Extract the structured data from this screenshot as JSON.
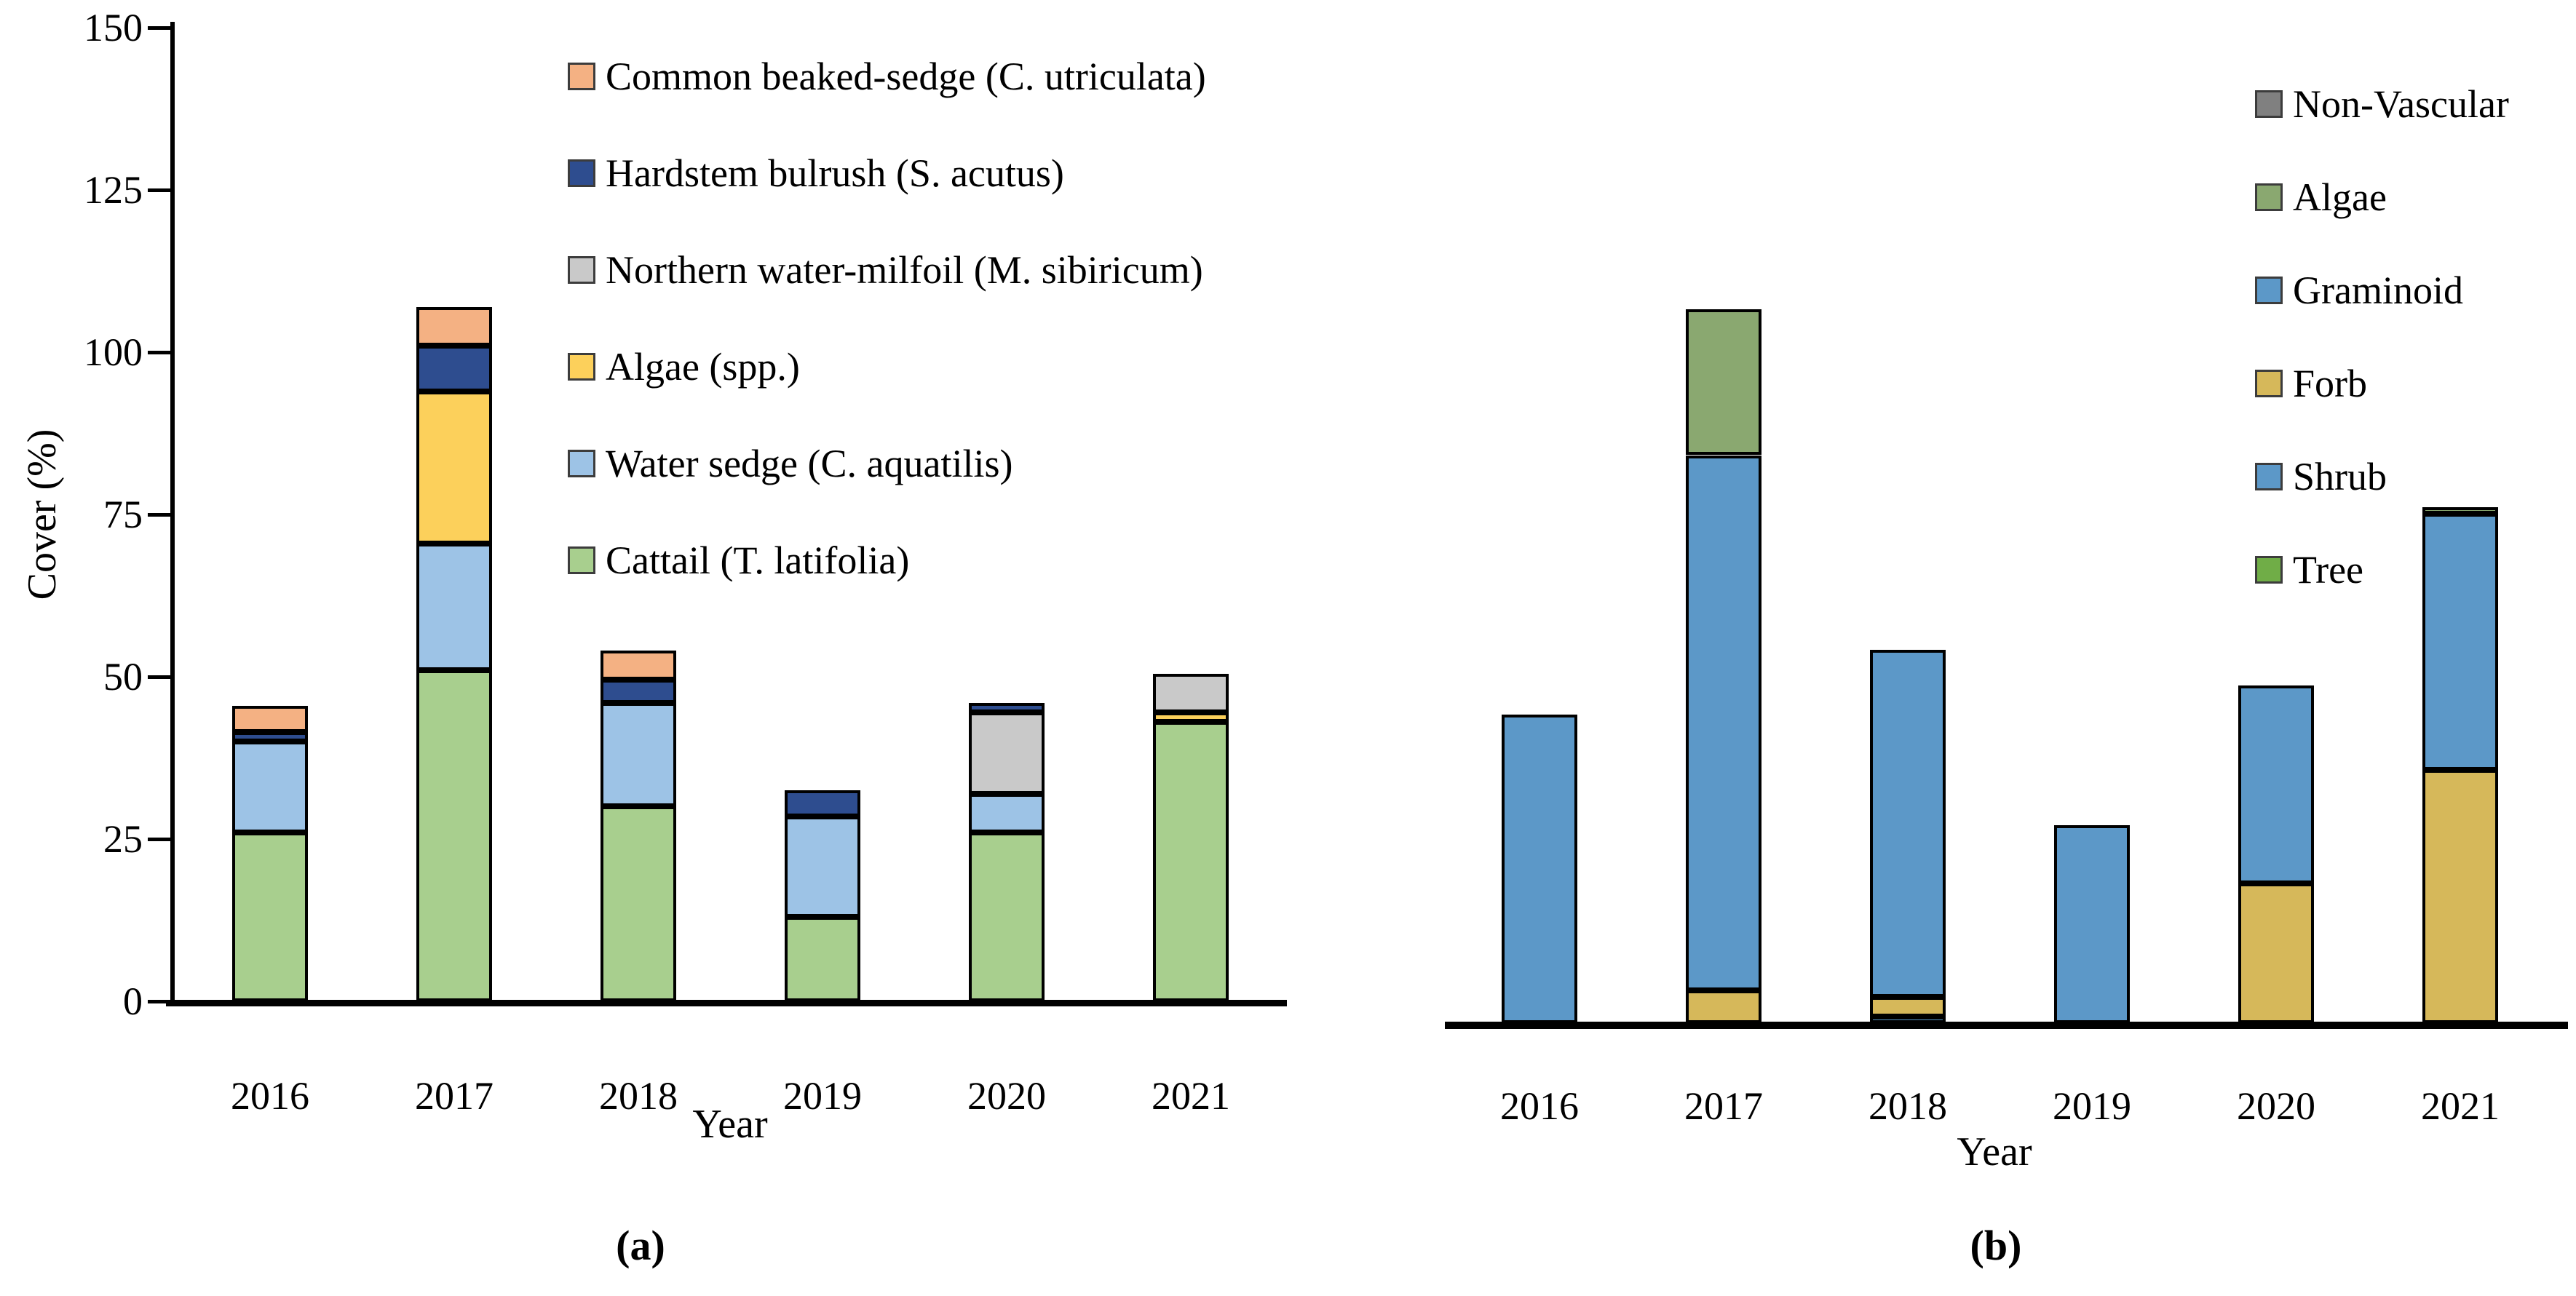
{
  "chart_data": [
    {
      "type": "bar",
      "subtype": "stacked-vertical",
      "panel_caption": "(a)",
      "title": "",
      "xlabel": "Year",
      "ylabel": "Cover (%)",
      "ylim": [
        0,
        150
      ],
      "y_ticks": [
        150,
        125,
        100,
        75,
        50,
        25,
        0
      ],
      "grid": "off",
      "legend_position": "upper-right-inside",
      "categories": [
        "2016",
        "2017",
        "2018",
        "2019",
        "2020",
        "2021"
      ],
      "series": [
        {
          "name": "Common beaked-sedge (C. utriculata)",
          "color": "#F4B183",
          "values": [
            4,
            6,
            4.5,
            0,
            0,
            0
          ]
        },
        {
          "name": "Hardstem bulrush (S. acutus)",
          "color": "#2E4D8F",
          "values": [
            1.5,
            7,
            3.5,
            4,
            1.5,
            0
          ]
        },
        {
          "name": "Northern water-milfoil (M. sibiricum)",
          "color": "#C9C9C9",
          "values": [
            0,
            0,
            0,
            0,
            12.5,
            6
          ]
        },
        {
          "name": "Algae (spp.)",
          "color": "#FCD05B",
          "values": [
            0,
            23.5,
            0,
            0,
            0,
            1.5
          ]
        },
        {
          "name": "Water sedge (C. aquatilis)",
          "color": "#9DC3E6",
          "values": [
            14,
            19.5,
            16,
            15.5,
            6,
            0
          ]
        },
        {
          "name": "Cattail (T. latifolia)",
          "color": "#A8CF8E",
          "values": [
            26,
            51,
            30,
            13,
            26,
            43
          ]
        }
      ],
      "stack_order_note": "legend top entry is top of stack; bottom entry is bottom of stack",
      "totals": [
        45.5,
        107,
        54,
        32.5,
        46,
        50.5
      ]
    },
    {
      "type": "bar",
      "subtype": "stacked-vertical",
      "panel_caption": "(b)",
      "title": "",
      "xlabel": "Year",
      "ylabel": "",
      "ylim": [
        0,
        150
      ],
      "y_ticks": [],
      "grid": "off",
      "legend_position": "upper-right-inside",
      "categories": [
        "2016",
        "2017",
        "2018",
        "2019",
        "2020",
        "2021"
      ],
      "series": [
        {
          "name": "Non-Vascular",
          "color": "#808080",
          "values": [
            0,
            0,
            0,
            0,
            0,
            0
          ]
        },
        {
          "name": "Algae",
          "color": "#8AA870",
          "values": [
            0,
            22.5,
            0,
            0,
            0,
            1
          ]
        },
        {
          "name": "Graminoid",
          "color": "#5C98C8",
          "values": [
            47.5,
            82.5,
            53.5,
            30.5,
            30.5,
            39.5
          ]
        },
        {
          "name": "Forb",
          "color": "#D6B85A",
          "values": [
            0,
            5,
            3,
            0,
            21.5,
            39
          ]
        },
        {
          "name": "Shrub",
          "color": "#5C98C8",
          "values": [
            0,
            0,
            1,
            0,
            0,
            0
          ]
        },
        {
          "name": "Tree",
          "color": "#70AD47",
          "values": [
            0,
            0,
            0,
            0,
            0,
            0
          ]
        }
      ],
      "stack_order_note": "legend top entry is top of stack; bottom entry is bottom of stack",
      "totals": [
        47.5,
        110,
        57.5,
        30.5,
        52,
        79.5
      ]
    }
  ]
}
